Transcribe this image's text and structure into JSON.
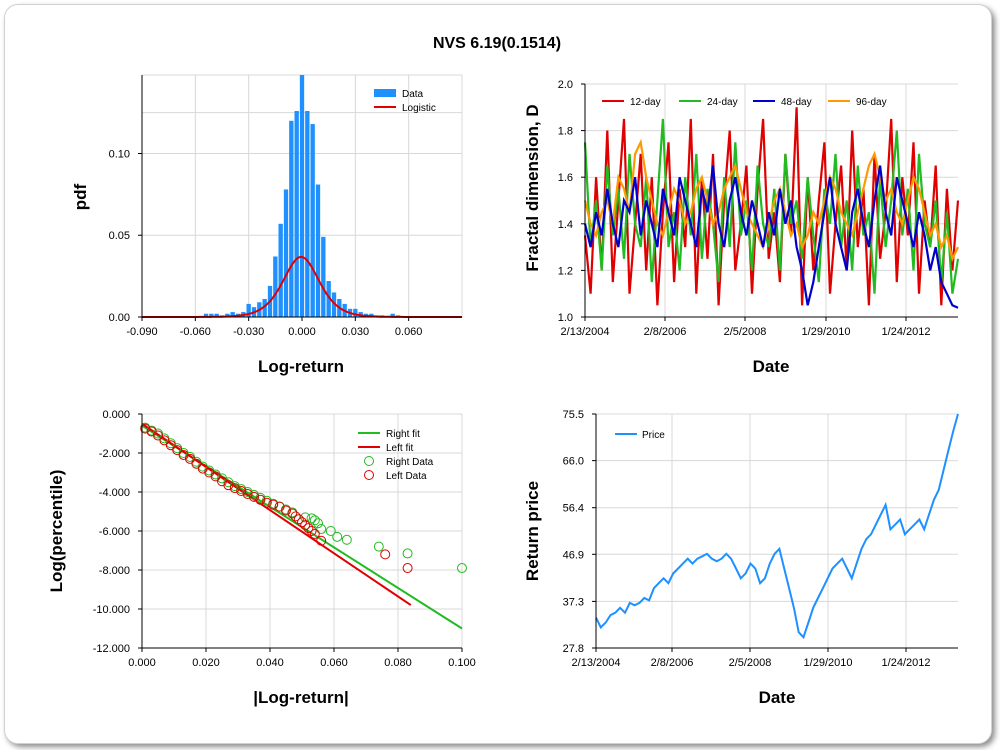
{
  "title": "NVS 6.19(0.1514)",
  "chart_data": [
    {
      "id": "pdf",
      "type": "bar",
      "title": "",
      "xlabel": "Log-return",
      "ylabel": "pdf",
      "xlim": [
        -0.09,
        0.09
      ],
      "ylim": [
        0,
        0.148
      ],
      "xticks": [
        "-0.090",
        "-0.060",
        "-0.030",
        "0.000",
        "0.030",
        "0.060"
      ],
      "yticks": [
        "0.00",
        "0.05",
        "0.10"
      ],
      "legend": [
        "Data",
        "Logistic"
      ],
      "colors": {
        "data": "#1e90ff",
        "fit": "#e00000"
      },
      "bins": {
        "x": [
          -0.054,
          -0.051,
          -0.048,
          -0.045,
          -0.042,
          -0.039,
          -0.036,
          -0.033,
          -0.03,
          -0.027,
          -0.024,
          -0.021,
          -0.018,
          -0.015,
          -0.012,
          -0.009,
          -0.006,
          -0.003,
          0.0,
          0.003,
          0.006,
          0.009,
          0.012,
          0.015,
          0.018,
          0.021,
          0.024,
          0.027,
          0.03,
          0.033,
          0.036,
          0.039,
          0.042,
          0.045,
          0.048,
          0.051,
          0.054
        ],
        "values": [
          0.002,
          0.002,
          0.002,
          0.001,
          0.002,
          0.003,
          0.002,
          0.003,
          0.008,
          0.006,
          0.009,
          0.011,
          0.019,
          0.037,
          0.057,
          0.078,
          0.12,
          0.126,
          0.148,
          0.126,
          0.118,
          0.081,
          0.049,
          0.022,
          0.015,
          0.011,
          0.008,
          0.005,
          0.005,
          0.003,
          0.002,
          0.002,
          0.001,
          0.001,
          0.0,
          0.002,
          0.001
        ]
      },
      "fit": {
        "type": "logistic",
        "loc": -0.0005,
        "scale": 0.0068
      }
    },
    {
      "id": "fractal",
      "type": "line",
      "title": "",
      "xlabel": "Date",
      "ylabel": "Fractal dimension, D",
      "ylim": [
        1.0,
        2.0
      ],
      "xticks": [
        "2/13/2004",
        "2/8/2006",
        "2/5/2008",
        "1/29/2010",
        "1/24/2012"
      ],
      "yticks": [
        "1.0",
        "1.2",
        "1.4",
        "1.6",
        "1.8",
        "2.0"
      ],
      "legend_position": "top",
      "series": [
        {
          "name": "12-day",
          "color": "#e00000",
          "values": [
            1.35,
            1.1,
            1.6,
            1.2,
            1.8,
            1.15,
            1.5,
            1.85,
            1.1,
            1.4,
            1.7,
            1.2,
            1.6,
            1.05,
            1.45,
            1.75,
            1.15,
            1.55,
            1.3,
            1.85,
            1.1,
            1.6,
            1.25,
            1.7,
            1.05,
            1.5,
            1.8,
            1.2,
            1.4,
            1.65,
            1.1,
            1.55,
            1.85,
            1.25,
            1.45,
            1.15,
            1.7,
            1.35,
            1.9,
            1.05,
            1.6,
            1.2,
            1.5,
            1.75,
            1.1,
            1.4,
            1.65,
            1.2,
            1.8,
            1.3,
            1.55,
            1.05,
            1.7,
            1.25,
            1.45,
            1.85,
            1.15,
            1.6,
            1.35,
            1.75,
            1.1,
            1.5,
            1.3,
            1.65,
            1.05,
            1.55,
            1.2,
            1.5
          ]
        },
        {
          "name": "24-day",
          "color": "#22bb22",
          "values": [
            1.75,
            1.3,
            1.5,
            1.2,
            1.65,
            1.35,
            1.55,
            1.25,
            1.7,
            1.4,
            1.3,
            1.6,
            1.15,
            1.5,
            1.85,
            1.3,
            1.45,
            1.2,
            1.6,
            1.35,
            1.7,
            1.25,
            1.55,
            1.4,
            1.15,
            1.6,
            1.3,
            1.75,
            1.35,
            1.5,
            1.2,
            1.65,
            1.4,
            1.3,
            1.55,
            1.2,
            1.7,
            1.4,
            1.5,
            1.25,
            1.6,
            1.35,
            1.15,
            1.55,
            1.4,
            1.7,
            1.3,
            1.5,
            1.2,
            1.65,
            1.35,
            1.45,
            1.1,
            1.6,
            1.3,
            1.5,
            1.8,
            1.35,
            1.55,
            1.2,
            1.7,
            1.4,
            1.3,
            1.5,
            1.15,
            1.45,
            1.1,
            1.25
          ]
        },
        {
          "name": "48-day",
          "color": "#0000cc",
          "values": [
            1.4,
            1.3,
            1.45,
            1.35,
            1.55,
            1.4,
            1.3,
            1.5,
            1.45,
            1.6,
            1.35,
            1.5,
            1.4,
            1.3,
            1.55,
            1.45,
            1.35,
            1.6,
            1.5,
            1.4,
            1.3,
            1.55,
            1.45,
            1.65,
            1.4,
            1.3,
            1.5,
            1.6,
            1.45,
            1.35,
            1.5,
            1.4,
            1.3,
            1.45,
            1.35,
            1.55,
            1.4,
            1.5,
            1.3,
            1.2,
            1.05,
            1.15,
            1.3,
            1.45,
            1.6,
            1.4,
            1.3,
            1.2,
            1.45,
            1.55,
            1.4,
            1.3,
            1.5,
            1.65,
            1.45,
            1.35,
            1.6,
            1.5,
            1.4,
            1.3,
            1.45,
            1.35,
            1.2,
            1.3,
            1.15,
            1.1,
            1.05,
            1.04
          ]
        },
        {
          "name": "96-day",
          "color": "#ff9900",
          "values": [
            1.5,
            1.4,
            1.35,
            1.45,
            1.5,
            1.4,
            1.6,
            1.55,
            1.45,
            1.7,
            1.75,
            1.6,
            1.5,
            1.4,
            1.35,
            1.45,
            1.55,
            1.5,
            1.4,
            1.45,
            1.55,
            1.6,
            1.5,
            1.4,
            1.45,
            1.55,
            1.6,
            1.65,
            1.55,
            1.45,
            1.4,
            1.35,
            1.3,
            1.4,
            1.5,
            1.55,
            1.45,
            1.35,
            1.4,
            1.3,
            1.35,
            1.45,
            1.4,
            1.5,
            1.6,
            1.55,
            1.45,
            1.4,
            1.35,
            1.45,
            1.55,
            1.65,
            1.7,
            1.6,
            1.5,
            1.55,
            1.45,
            1.4,
            1.5,
            1.6,
            1.55,
            1.45,
            1.35,
            1.4,
            1.3,
            1.35,
            1.25,
            1.3
          ]
        }
      ]
    },
    {
      "id": "tail",
      "type": "scatter",
      "title": "",
      "xlabel": "|Log-return|",
      "ylabel": "Log(percentile)",
      "xlim": [
        0,
        0.1
      ],
      "ylim": [
        -12,
        0
      ],
      "xticks": [
        "0.000",
        "0.020",
        "0.040",
        "0.060",
        "0.080",
        "0.100"
      ],
      "yticks": [
        "0.000",
        "-2.000",
        "-4.000",
        "-6.000",
        "-8.000",
        "-10.000",
        "-12.000"
      ],
      "legend": [
        "Right fit",
        "Left fit",
        "Right Data",
        "Left Data"
      ],
      "colors": {
        "right": "#22bb22",
        "left": "#e00000"
      },
      "right_fit": {
        "x": [
          0,
          0.1
        ],
        "y": [
          -0.6,
          -11.0
        ]
      },
      "left_fit": {
        "x": [
          0,
          0.084
        ],
        "y": [
          -0.5,
          -9.8
        ]
      },
      "right_data": {
        "x": [
          0.001,
          0.003,
          0.005,
          0.007,
          0.009,
          0.011,
          0.013,
          0.015,
          0.017,
          0.019,
          0.021,
          0.023,
          0.025,
          0.027,
          0.029,
          0.031,
          0.033,
          0.035,
          0.037,
          0.039,
          0.041,
          0.043,
          0.045,
          0.047,
          0.051,
          0.053,
          0.054,
          0.055,
          0.056,
          0.059,
          0.061,
          0.064,
          0.074,
          0.083,
          0.1
        ],
        "y": [
          -0.7,
          -0.85,
          -1.0,
          -1.25,
          -1.5,
          -1.75,
          -2.0,
          -2.2,
          -2.45,
          -2.7,
          -2.9,
          -3.1,
          -3.3,
          -3.5,
          -3.7,
          -3.85,
          -4.0,
          -4.15,
          -4.3,
          -4.45,
          -4.6,
          -4.75,
          -4.9,
          -5.05,
          -5.3,
          -5.35,
          -5.45,
          -5.6,
          -5.9,
          -6.0,
          -6.3,
          -6.45,
          -6.8,
          -7.15,
          -7.9
        ]
      },
      "left_data": {
        "x": [
          0.001,
          0.003,
          0.005,
          0.007,
          0.009,
          0.011,
          0.013,
          0.015,
          0.017,
          0.019,
          0.021,
          0.023,
          0.025,
          0.027,
          0.029,
          0.031,
          0.033,
          0.035,
          0.037,
          0.039,
          0.041,
          0.043,
          0.045,
          0.047,
          0.048,
          0.049,
          0.05,
          0.051,
          0.052,
          0.053,
          0.054,
          0.056,
          0.076,
          0.083
        ],
        "y": [
          -0.75,
          -0.9,
          -1.1,
          -1.35,
          -1.6,
          -1.85,
          -2.1,
          -2.3,
          -2.55,
          -2.8,
          -3.0,
          -3.2,
          -3.45,
          -3.65,
          -3.8,
          -3.95,
          -4.1,
          -4.25,
          -4.4,
          -4.55,
          -4.65,
          -4.75,
          -4.95,
          -5.1,
          -5.25,
          -5.4,
          -5.55,
          -5.7,
          -5.85,
          -6.0,
          -6.15,
          -6.5,
          -7.2,
          -7.9
        ]
      }
    },
    {
      "id": "price",
      "type": "line",
      "title": "",
      "xlabel": "Date",
      "ylabel": "Return price",
      "ylim": [
        27.8,
        75.5
      ],
      "xticks": [
        "2/13/2004",
        "2/8/2006",
        "2/5/2008",
        "1/29/2010",
        "1/24/2012"
      ],
      "yticks": [
        "27.8",
        "37.3",
        "46.9",
        "56.4",
        "66.0",
        "75.5"
      ],
      "legend": [
        "Price"
      ],
      "color": "#1e90ff",
      "series": [
        {
          "name": "Price",
          "values": [
            34,
            32,
            33,
            34.5,
            35,
            36,
            35,
            37,
            36.5,
            37,
            38,
            37.5,
            40,
            41,
            42,
            41,
            43,
            44,
            45,
            46,
            45,
            46,
            46.5,
            47,
            46,
            45.5,
            46,
            47,
            46,
            44,
            42,
            43,
            45,
            44,
            41,
            42,
            45,
            47,
            48,
            44,
            40,
            36,
            31,
            30,
            33,
            36,
            38,
            40,
            42,
            44,
            45,
            46,
            44,
            42,
            45,
            48,
            50,
            51,
            53,
            55,
            57,
            52,
            53,
            54,
            51,
            52,
            53,
            54,
            52,
            55,
            58,
            60,
            64,
            68,
            72,
            75.5
          ]
        }
      ]
    }
  ]
}
